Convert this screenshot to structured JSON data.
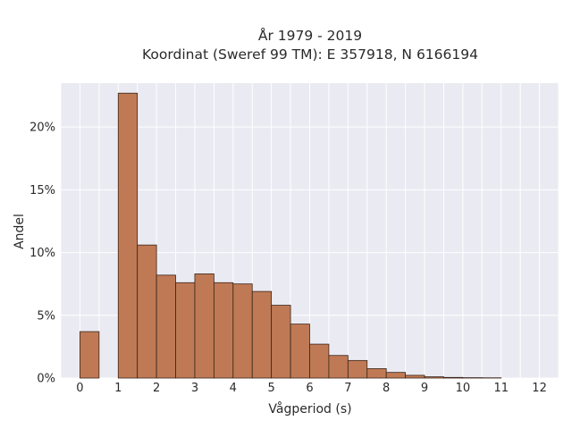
{
  "chart_data": {
    "type": "bar",
    "title": "År 1979 - 2019",
    "subtitle": "Koordinat (Sweref 99 TM): E 357918, N 6166194",
    "xlabel": "Vågperiod (s)",
    "ylabel": "Andel",
    "xlim": [
      -0.5,
      12.5
    ],
    "ylim": [
      0,
      23.5
    ],
    "x_ticks": [
      0,
      1,
      2,
      3,
      4,
      5,
      6,
      7,
      8,
      9,
      10,
      11,
      12
    ],
    "y_ticks": [
      0,
      5,
      10,
      15,
      20
    ],
    "y_tick_labels": [
      "0%",
      "5%",
      "10%",
      "15%",
      "20%"
    ],
    "bin_width": 0.5,
    "bins": [
      {
        "x": 0.0,
        "value": 3.7
      },
      {
        "x": 0.5,
        "value": 0.0
      },
      {
        "x": 1.0,
        "value": 22.7
      },
      {
        "x": 1.5,
        "value": 10.6
      },
      {
        "x": 2.0,
        "value": 8.2
      },
      {
        "x": 2.5,
        "value": 7.6
      },
      {
        "x": 3.0,
        "value": 8.3
      },
      {
        "x": 3.5,
        "value": 7.6
      },
      {
        "x": 4.0,
        "value": 7.5
      },
      {
        "x": 4.5,
        "value": 6.9
      },
      {
        "x": 5.0,
        "value": 5.8
      },
      {
        "x": 5.5,
        "value": 4.3
      },
      {
        "x": 6.0,
        "value": 2.7
      },
      {
        "x": 6.5,
        "value": 1.8
      },
      {
        "x": 7.0,
        "value": 1.4
      },
      {
        "x": 7.5,
        "value": 0.75
      },
      {
        "x": 8.0,
        "value": 0.45
      },
      {
        "x": 8.5,
        "value": 0.22
      },
      {
        "x": 9.0,
        "value": 0.1
      },
      {
        "x": 9.5,
        "value": 0.05
      },
      {
        "x": 10.0,
        "value": 0.03
      },
      {
        "x": 10.5,
        "value": 0.02
      }
    ],
    "grid": true,
    "colors": {
      "bar": "#bf7a55",
      "bar_edge": "#3a2418",
      "plot_background": "#eaeaf2",
      "grid": "#ffffff"
    }
  }
}
